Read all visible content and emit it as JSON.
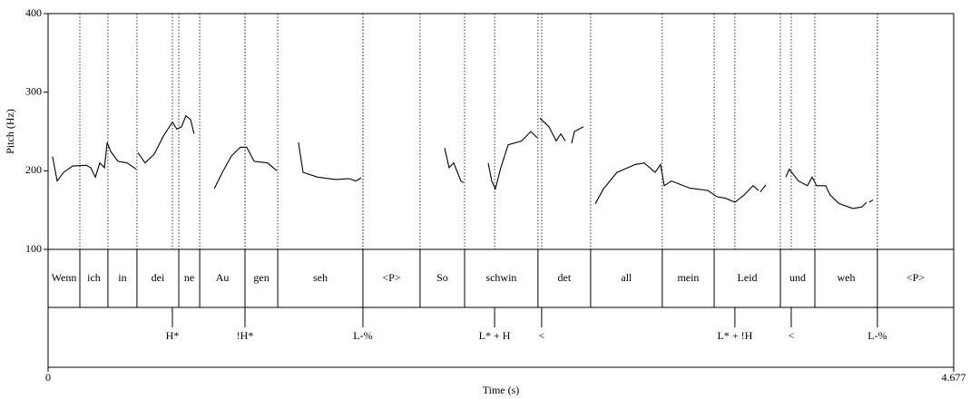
{
  "chart_data": {
    "type": "line",
    "ylabel": "Pitch (Hz)",
    "xlabel": "Time (s)",
    "color": "#000000",
    "xlim": [
      0,
      4.677
    ],
    "xticks": [
      0,
      4.677
    ],
    "ylim": [
      100,
      400
    ],
    "yticks": [
      100,
      200,
      300,
      400
    ],
    "x": [
      0.023,
      0.047,
      0.08,
      0.127,
      0.197,
      0.22,
      0.244,
      0.267,
      0.291,
      0.305,
      0.323,
      0.361,
      0.408,
      0.455,
      null,
      0.464,
      0.501,
      0.548,
      0.595,
      0.642,
      0.665,
      0.689,
      0.712,
      0.736,
      0.754,
      null,
      0.858,
      0.9,
      0.947,
      0.993,
      1.026,
      1.064,
      1.134,
      1.181,
      null,
      1.293,
      1.317,
      1.392,
      1.485,
      1.556,
      1.589,
      1.617,
      null,
      2.048,
      2.071,
      2.095,
      2.132,
      2.146,
      null,
      2.273,
      2.291,
      2.31,
      2.338,
      2.376,
      2.446,
      2.493,
      2.526,
      null,
      2.54,
      2.587,
      2.624,
      2.648,
      2.671,
      null,
      2.704,
      2.718,
      2.765,
      null,
      2.826,
      2.868,
      2.938,
      3.032,
      3.079,
      3.135,
      3.163,
      3.182,
      3.219,
      3.313,
      3.407,
      3.454,
      3.5,
      3.547,
      3.594,
      3.641,
      3.669,
      null,
      3.678,
      3.707,
      null,
      3.81,
      3.828,
      3.875,
      3.922,
      3.946,
      3.969,
      4.016,
      4.039,
      4.086,
      4.157,
      4.203,
      4.227,
      null,
      4.241,
      4.26
    ],
    "values": [
      218,
      187,
      198,
      206,
      207,
      204,
      192,
      210,
      204,
      236,
      225,
      212,
      210,
      202,
      null,
      223,
      210,
      221,
      244,
      262,
      253,
      256,
      270,
      265,
      247,
      null,
      177,
      198,
      219,
      230,
      230,
      212,
      210,
      200,
      null,
      236,
      198,
      192,
      189,
      190,
      187,
      191,
      null,
      229,
      204,
      210,
      187,
      185,
      null,
      210,
      187,
      177,
      204,
      233,
      238,
      250,
      242,
      null,
      267,
      256,
      238,
      247,
      238,
      null,
      235,
      250,
      256,
      null,
      158,
      177,
      198,
      208,
      210,
      198,
      208,
      181,
      187,
      178,
      175,
      167,
      165,
      160,
      169,
      181,
      175,
      null,
      173,
      182,
      null,
      192,
      202,
      187,
      181,
      192,
      181,
      181,
      169,
      158,
      152,
      154,
      160,
      null,
      160,
      163
    ],
    "tiers": [
      {
        "boundaries": [
          0.164,
          0.309,
          0.459,
          0.675,
          0.783,
          1.017,
          1.186,
          1.626,
          1.921,
          2.151,
          2.53,
          2.802,
          3.172,
          3.44,
          3.782,
          3.96,
          4.283
        ],
        "labels": [
          "Wenn",
          "ich",
          "in",
          "dei",
          "ne",
          "Au",
          "gen",
          "seh",
          "<P>",
          "So",
          "schwin",
          "det",
          "all",
          "mein",
          "Leid",
          "und",
          "weh",
          "<P>"
        ]
      },
      {
        "points": [
          0.642,
          1.017,
          1.626,
          2.306,
          2.549,
          3.547,
          3.838,
          4.283
        ],
        "labels": [
          "H*",
          "!H*",
          "L-%",
          "L* + H",
          "<",
          "L* + !H",
          "<",
          "L-%"
        ]
      }
    ]
  }
}
